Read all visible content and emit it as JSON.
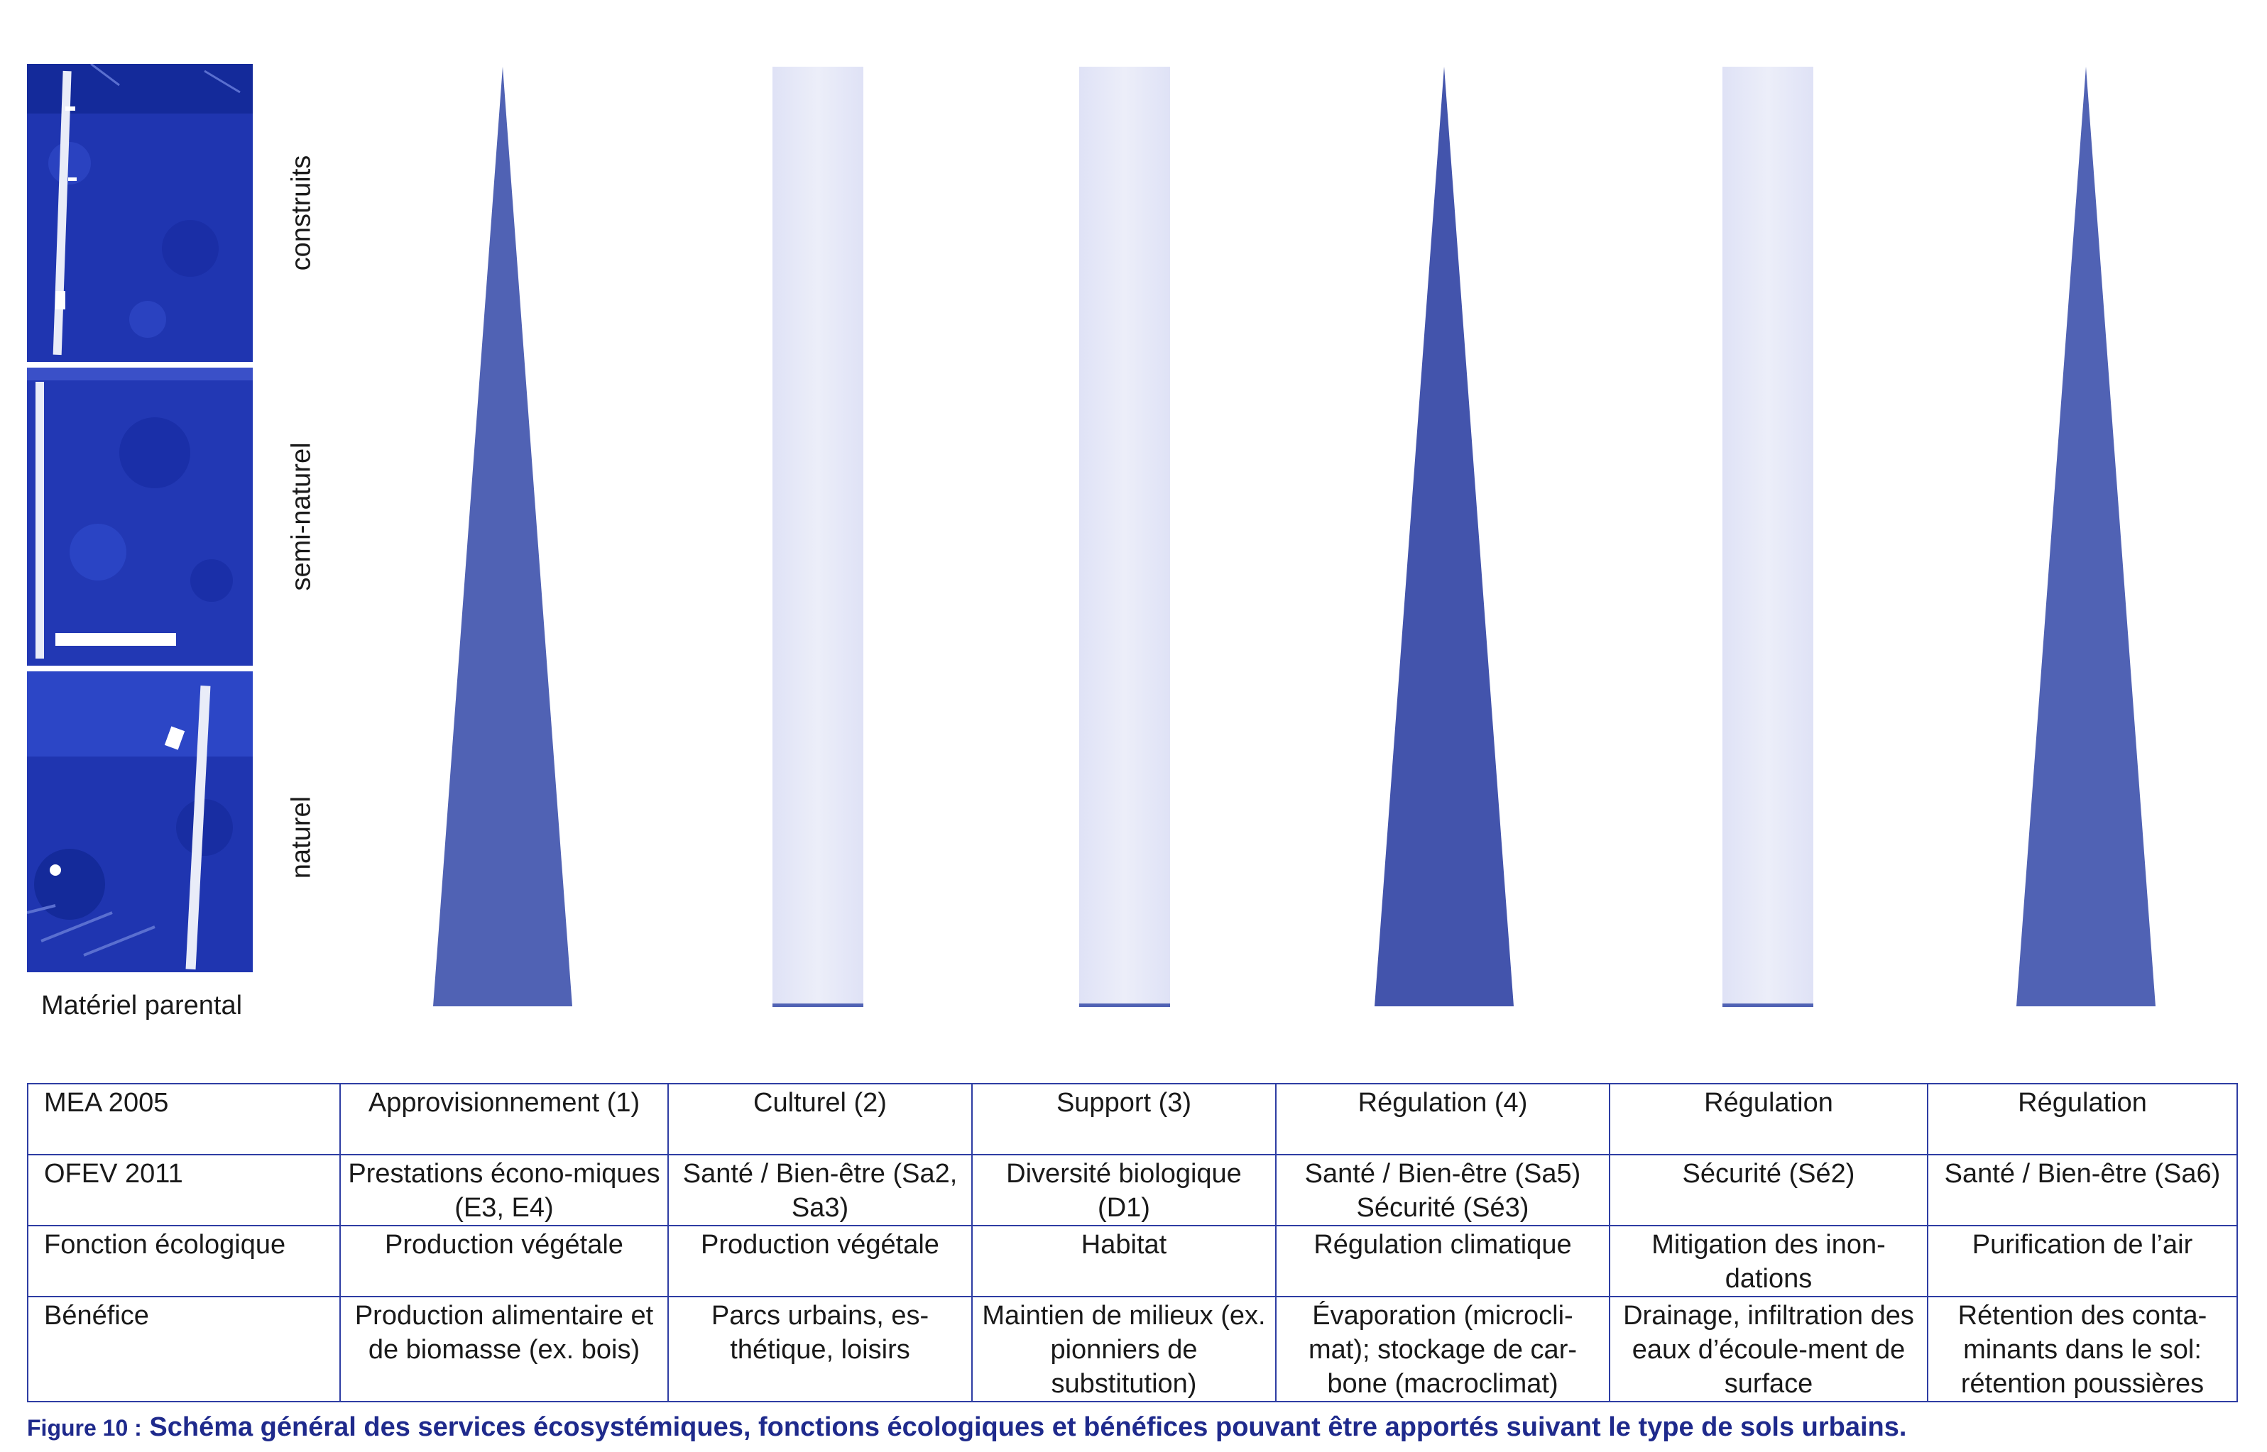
{
  "photos": {
    "labels": [
      "construits",
      "semi-naturel",
      "naturel"
    ],
    "bottom_label": "Matériel parental"
  },
  "colors": {
    "photo_blue": "#1f35b0",
    "shape_main": "#5062b4",
    "shape_dark": "#4354ac",
    "shape_light": "#e6e8f8",
    "table_border": "#2e3da3",
    "caption": "#1f2a8c"
  },
  "columns": [
    {
      "shape": "triangle",
      "tone": "main"
    },
    {
      "shape": "bar",
      "tone": "light"
    },
    {
      "shape": "bar",
      "tone": "light"
    },
    {
      "shape": "triangle",
      "tone": "dark"
    },
    {
      "shape": "bar",
      "tone": "light"
    },
    {
      "shape": "triangle",
      "tone": "main"
    }
  ],
  "table": {
    "rows": [
      {
        "header": "MEA 2005",
        "cells": [
          "Approvisionnement (1)",
          "Culturel (2)",
          "Support (3)",
          "Régulation (4)",
          "Régulation",
          "Régulation"
        ]
      },
      {
        "header": "OFEV 2011",
        "cells": [
          "Prestations écono-miques (E3, E4)",
          "Santé / Bien-être (Sa2, Sa3)",
          "Diversité biologique (D1)",
          "Santé / Bien-être (Sa5) Sécurité (Sé3)",
          "Sécurité (Sé2)",
          "Santé / Bien-être (Sa6)"
        ]
      },
      {
        "header": "Fonction écologique",
        "cells": [
          "Production végétale",
          "Production végétale",
          "Habitat",
          "Régulation climatique",
          "Mitigation des inon-dations",
          "Purification de l’air"
        ]
      },
      {
        "header": "Bénéfice",
        "cells": [
          "Production alimentaire et de biomasse (ex. bois)",
          "Parcs urbains, es-thétique, loisirs",
          "Maintien de milieux (ex. pionniers de substitution)",
          "Évaporation (microcli-mat); stockage de car-bone (macroclimat)",
          "Drainage, infiltration des eaux d’écoule-ment de surface",
          "Rétention des conta-minants dans le sol: rétention poussières"
        ]
      }
    ]
  },
  "caption": {
    "number": "Figure 10 :",
    "text": "Schéma général des services écosystémiques, fonctions écologiques et bénéfices pouvant être apportés suivant le type de sols urbains."
  }
}
